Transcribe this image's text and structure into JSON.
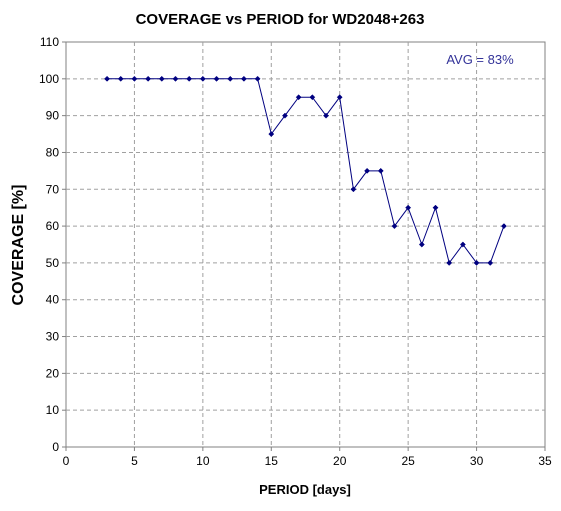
{
  "chart_data": {
    "type": "line",
    "title": "COVERAGE vs PERIOD for WD2048+263",
    "xlabel": "PERIOD [days]",
    "ylabel": "COVERAGE [%]",
    "xlim": [
      0,
      35
    ],
    "ylim": [
      0,
      110
    ],
    "x_ticks": [
      0,
      5,
      10,
      15,
      20,
      25,
      30,
      35
    ],
    "y_ticks": [
      0,
      10,
      20,
      30,
      40,
      50,
      60,
      70,
      80,
      90,
      100,
      110
    ],
    "grid": true,
    "annotation": "AVG = 83%",
    "series": [
      {
        "x": [
          3,
          4,
          5,
          6,
          7,
          8,
          9,
          10,
          11,
          12,
          13,
          14,
          15,
          16,
          17,
          18,
          19,
          20,
          21,
          22,
          23,
          24,
          25,
          26,
          27,
          28,
          29,
          30,
          31,
          32
        ],
        "y": [
          100,
          100,
          100,
          100,
          100,
          100,
          100,
          100,
          100,
          100,
          100,
          100,
          85,
          90,
          95,
          95,
          90,
          95,
          70,
          75,
          75,
          60,
          65,
          55,
          65,
          50,
          55,
          50,
          50,
          60
        ]
      }
    ],
    "colors": {
      "line": "#000080",
      "marker": "#000080",
      "annotation": "#333399",
      "grid": "#a0a0a0",
      "axis": "#808080"
    }
  }
}
